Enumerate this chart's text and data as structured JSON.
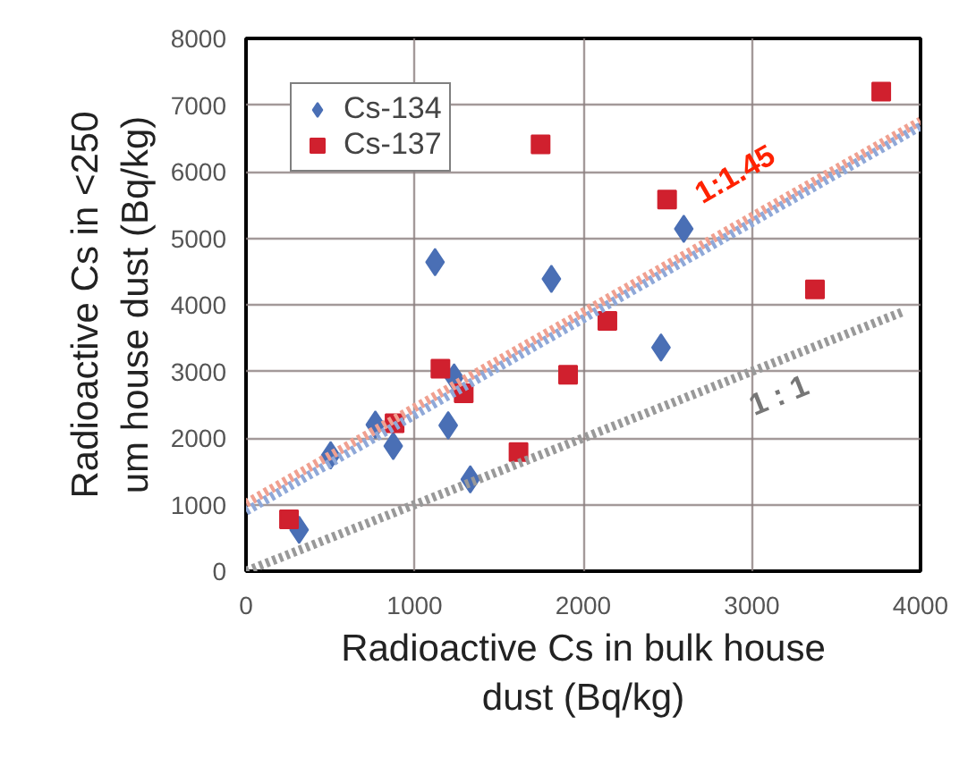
{
  "chart_data": {
    "type": "scatter",
    "xlabel": "Radioactive Cs in bulk house dust (Bq/kg)",
    "ylabel": "Radioactive Cs in <250 um house dust (Bq/kg)",
    "xlim": [
      0,
      4000
    ],
    "xticks": [
      0,
      1000,
      2000,
      3000,
      4000
    ],
    "ylim": [
      0,
      8000
    ],
    "yticks": [
      0,
      1000,
      2000,
      3000,
      4000,
      5000,
      6000,
      7000,
      8000
    ],
    "grid": true,
    "legend": "top left",
    "series": [
      {
        "name": "Cs-134",
        "color": "#4a6fb5",
        "marker": "diamond",
        "x": [
          315,
          502,
          767,
          873,
          1121,
          1234,
          1199,
          1330,
          1811,
          2596,
          2461
        ],
        "values": [
          620,
          1740,
          2200,
          1880,
          4640,
          2910,
          2190,
          1380,
          4390,
          5140,
          3360
        ]
      },
      {
        "name": "Cs-137",
        "color": "#d0202e",
        "marker": "square",
        "x": [
          255,
          881,
          1153,
          1291,
          1616,
          1747,
          1910,
          2143,
          2497,
          3374,
          3767
        ],
        "values": [
          780,
          2220,
          3040,
          2670,
          1790,
          6410,
          2950,
          3760,
          5580,
          4230,
          7200
        ]
      },
      {
        "type": "line",
        "color": "#f0a090",
        "line_style": "dotted",
        "x": [
          0,
          4000
        ],
        "values": [
          1020,
          6760
        ]
      },
      {
        "type": "line",
        "color": "#8fa8d8",
        "line_style": "dotted",
        "x": [
          0,
          4000
        ],
        "values": [
          900,
          6680
        ]
      },
      {
        "type": "line",
        "color": "#999999",
        "line_style": "dotted",
        "x": [
          0,
          3900
        ],
        "values": [
          0,
          3900
        ]
      }
    ],
    "annotations": [
      "1:1.45",
      "1 : 1"
    ]
  }
}
